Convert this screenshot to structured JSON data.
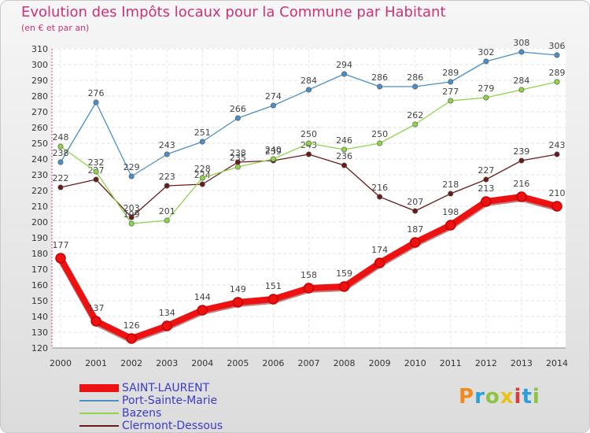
{
  "header": {
    "title": "Evolution des Impôts locaux pour la Commune par Habitant",
    "subtitle": "(en € et par an)"
  },
  "logo": {
    "text": "Proxiti",
    "colors": [
      "#f08a1c",
      "#2a9fd8",
      "#8bc43f",
      "#e8c21a",
      "#d93b3b",
      "#2a9fd8",
      "#8bc43f"
    ]
  },
  "chart_data": {
    "type": "line",
    "title": "Evolution des Impôts locaux pour la Commune par Habitant",
    "subtitle": "(en € et par an)",
    "xlabel": "",
    "ylabel": "",
    "categories": [
      "2000",
      "2001",
      "2002",
      "2003",
      "2004",
      "2005",
      "2006",
      "2007",
      "2008",
      "2009",
      "2010",
      "2011",
      "2012",
      "2013",
      "2014"
    ],
    "ylim": [
      120,
      310
    ],
    "yticks": [
      120,
      130,
      140,
      150,
      160,
      170,
      180,
      190,
      200,
      210,
      220,
      230,
      240,
      250,
      260,
      270,
      280,
      290,
      300,
      310
    ],
    "grid": true,
    "legend": "bottom-left",
    "series": [
      {
        "name": "SAINT-LAURENT",
        "color": "#ee1111",
        "values": [
          177,
          137,
          126,
          134,
          144,
          149,
          151,
          158,
          159,
          174,
          187,
          198,
          213,
          216,
          210
        ]
      },
      {
        "name": "Port-Sainte-Marie",
        "color": "#4a8fc9",
        "values": [
          238,
          276,
          229,
          243,
          251,
          266,
          274,
          284,
          294,
          286,
          286,
          289,
          302,
          308,
          306
        ]
      },
      {
        "name": "Bazens",
        "color": "#8fd34a",
        "values": [
          248,
          232,
          199,
          201,
          228,
          235,
          240,
          250,
          246,
          250,
          262,
          277,
          279,
          284,
          289
        ]
      },
      {
        "name": "Clermont-Dessous",
        "color": "#6b1a1a",
        "values": [
          222,
          227,
          203,
          223,
          224,
          238,
          239,
          243,
          236,
          216,
          207,
          218,
          227,
          239,
          243
        ]
      }
    ],
    "data_labels": [
      [
        "177",
        "137",
        "126",
        "134",
        "144",
        "149",
        "151",
        "158",
        "159",
        "174",
        "187",
        "198",
        "213",
        "216",
        "210"
      ],
      [
        "238",
        "276",
        "229",
        "243",
        "251",
        "266",
        "274",
        "284",
        "294",
        "286",
        "286",
        "289",
        "302",
        "308",
        "306"
      ],
      [
        "248",
        "232",
        "199",
        "201",
        "228",
        "235",
        "240",
        "250",
        "246",
        "250",
        "262",
        "277",
        "279",
        "284",
        "289"
      ],
      [
        "222",
        "227",
        "203",
        "223",
        "224",
        "238",
        "239",
        "243",
        "236",
        "216",
        "207",
        "218",
        "227",
        "239",
        "243"
      ]
    ]
  }
}
